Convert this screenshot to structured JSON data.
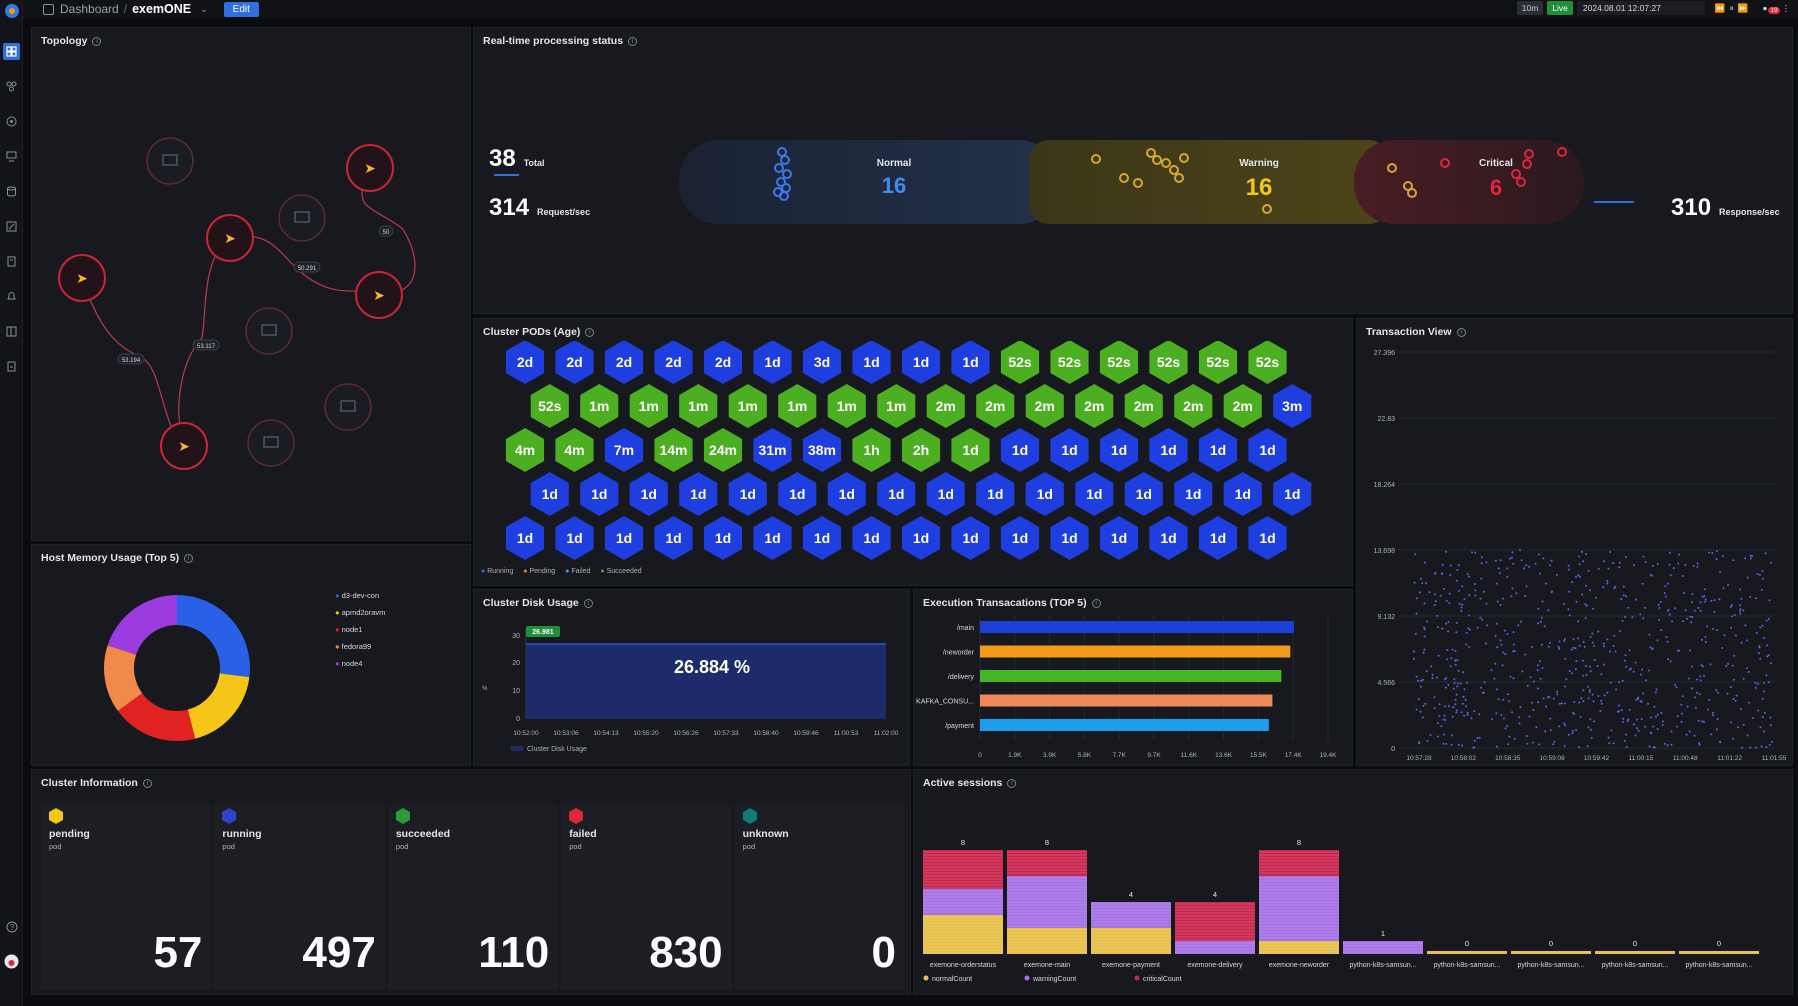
{
  "topbar": {
    "breadcrumb_root": "Dashboard",
    "separator": "/",
    "dashboard_name": "exemONE",
    "edit_label": "Edit",
    "interval": "10m",
    "live_label": "Live",
    "datetime": "2024.08.01 12:07:27",
    "notification_count": "19"
  },
  "topology": {
    "title": "Topology",
    "edge_labels": [
      "50",
      "50.291",
      "53.117",
      "53.194"
    ]
  },
  "realtime": {
    "title": "Real-time processing status",
    "total_value": "38",
    "total_label": "Total",
    "request_value": "314",
    "request_label": "Request/sec",
    "normal_label": "Normal",
    "normal_value": "16",
    "warning_label": "Warning",
    "warning_value": "16",
    "critical_label": "Critical",
    "critical_value": "6",
    "response_value": "310",
    "response_label": "Response/sec"
  },
  "pods": {
    "title": "Cluster PODs (Age)",
    "legend": [
      "Running",
      "Pending",
      "Failed",
      "Succeeded"
    ],
    "colors": {
      "running": "#1f3ee0",
      "succeeded": "#4caf22"
    },
    "rows": [
      [
        [
          "2d",
          "r"
        ],
        [
          "2d",
          "r"
        ],
        [
          "2d",
          "r"
        ],
        [
          "2d",
          "r"
        ],
        [
          "2d",
          "r"
        ],
        [
          "1d",
          "r"
        ],
        [
          "3d",
          "r"
        ],
        [
          "1d",
          "r"
        ],
        [
          "1d",
          "r"
        ],
        [
          "1d",
          "r"
        ],
        [
          "52s",
          "g"
        ],
        [
          "52s",
          "g"
        ],
        [
          "52s",
          "g"
        ],
        [
          "52s",
          "g"
        ],
        [
          "52s",
          "g"
        ],
        [
          "52s",
          "g"
        ]
      ],
      [
        [
          "52s",
          "g"
        ],
        [
          "1m",
          "g"
        ],
        [
          "1m",
          "g"
        ],
        [
          "1m",
          "g"
        ],
        [
          "1m",
          "g"
        ],
        [
          "1m",
          "g"
        ],
        [
          "1m",
          "g"
        ],
        [
          "1m",
          "g"
        ],
        [
          "2m",
          "g"
        ],
        [
          "2m",
          "g"
        ],
        [
          "2m",
          "g"
        ],
        [
          "2m",
          "g"
        ],
        [
          "2m",
          "g"
        ],
        [
          "2m",
          "g"
        ],
        [
          "2m",
          "g"
        ],
        [
          "3m",
          "r"
        ]
      ],
      [
        [
          "4m",
          "g"
        ],
        [
          "4m",
          "g"
        ],
        [
          "7m",
          "r"
        ],
        [
          "14m",
          "g"
        ],
        [
          "24m",
          "g"
        ],
        [
          "31m",
          "r"
        ],
        [
          "38m",
          "r"
        ],
        [
          "1h",
          "g"
        ],
        [
          "2h",
          "g"
        ],
        [
          "1d",
          "g"
        ],
        [
          "1d",
          "r"
        ],
        [
          "1d",
          "r"
        ],
        [
          "1d",
          "r"
        ],
        [
          "1d",
          "r"
        ],
        [
          "1d",
          "r"
        ],
        [
          "1d",
          "r"
        ]
      ],
      [
        [
          "1d",
          "r"
        ],
        [
          "1d",
          "r"
        ],
        [
          "1d",
          "r"
        ],
        [
          "1d",
          "r"
        ],
        [
          "1d",
          "r"
        ],
        [
          "1d",
          "r"
        ],
        [
          "1d",
          "r"
        ],
        [
          "1d",
          "r"
        ],
        [
          "1d",
          "r"
        ],
        [
          "1d",
          "r"
        ],
        [
          "1d",
          "r"
        ],
        [
          "1d",
          "r"
        ],
        [
          "1d",
          "r"
        ],
        [
          "1d",
          "r"
        ],
        [
          "1d",
          "r"
        ],
        [
          "1d",
          "r"
        ]
      ],
      [
        [
          "1d",
          "r"
        ],
        [
          "1d",
          "r"
        ],
        [
          "1d",
          "r"
        ],
        [
          "1d",
          "r"
        ],
        [
          "1d",
          "r"
        ],
        [
          "1d",
          "r"
        ],
        [
          "1d",
          "r"
        ],
        [
          "1d",
          "r"
        ],
        [
          "1d",
          "r"
        ],
        [
          "1d",
          "r"
        ],
        [
          "1d",
          "r"
        ],
        [
          "1d",
          "r"
        ],
        [
          "1d",
          "r"
        ],
        [
          "1d",
          "r"
        ],
        [
          "1d",
          "r"
        ],
        [
          "1d",
          "r"
        ]
      ]
    ]
  },
  "txview": {
    "title": "Transaction View",
    "y_ticks": [
      "27.396",
      "22.83",
      "18.264",
      "13.698",
      "9.132",
      "4.566",
      "0"
    ],
    "x_ticks": [
      "10:57:28",
      "10:58:02",
      "10:58:35",
      "10:59:08",
      "10:59:42",
      "11:00:15",
      "11:00:48",
      "11:01:22",
      "11:01:55"
    ]
  },
  "hostmem": {
    "title": "Host Memory Usage (Top 5)",
    "legend": [
      {
        "name": "d3-dev-con",
        "color": "#2a5fe8"
      },
      {
        "name": "apmd2oravm",
        "color": "#f5c518"
      },
      {
        "name": "node1",
        "color": "#e02222"
      },
      {
        "name": "fedora99",
        "color": "#f0894a"
      },
      {
        "name": "node4",
        "color": "#9b3be0"
      }
    ]
  },
  "disk": {
    "title": "Cluster Disk Usage",
    "badge": "26.981",
    "center_value": "26.884 %",
    "y_ticks": [
      "30",
      "20",
      "10",
      "0"
    ],
    "y_unit": "%",
    "x_ticks": [
      "10:52:00",
      "10:53:06",
      "10:54:13",
      "10:55:20",
      "10:56:26",
      "10:57:33",
      "10:58:40",
      "10:59:46",
      "11:00:53",
      "11:02:00"
    ],
    "legend": "Cluster Disk Usage"
  },
  "exec": {
    "title": "Execution Transacations (TOP 5)",
    "x_ticks": [
      "0",
      "1.9K",
      "3.9K",
      "5.8K",
      "7.7K",
      "9.7K",
      "11.6K",
      "13.6K",
      "15.5K",
      "17.4K",
      "19.4K"
    ]
  },
  "cluster_info": {
    "title": "Cluster Information",
    "cards": [
      {
        "status": "pending",
        "sub": "pod",
        "value": "57",
        "color": "#f5c518"
      },
      {
        "status": "running",
        "sub": "pod",
        "value": "497",
        "color": "#2b45c8"
      },
      {
        "status": "succeeded",
        "sub": "pod",
        "value": "110",
        "color": "#2e9a3a"
      },
      {
        "status": "failed",
        "sub": "pod",
        "value": "830",
        "color": "#e0263a"
      },
      {
        "status": "unknown",
        "sub": "pod",
        "value": "0",
        "color": "#0f7c7a"
      }
    ]
  },
  "sessions": {
    "title": "Active sessions",
    "legend": [
      "normalCount",
      "warningCount",
      "criticalCount"
    ]
  },
  "chart_data": [
    {
      "type": "bar",
      "title": "Execution Transacations (TOP 5)",
      "categories": [
        "/main",
        "/neworder",
        "/delivery",
        "KAFKA_CONSU...",
        "/payment"
      ],
      "values": [
        17500,
        17300,
        16800,
        16300,
        16100
      ],
      "colors": [
        "#1d3fd9",
        "#f59a16",
        "#45b52a",
        "#f0895a",
        "#1f9ef0"
      ],
      "xlim": [
        0,
        19400
      ]
    },
    {
      "type": "area",
      "title": "Cluster Disk Usage",
      "x": [
        "10:52:00",
        "11:02:00"
      ],
      "values": [
        26.981,
        26.884
      ],
      "ylim": [
        0,
        30
      ],
      "ylabel": "%"
    },
    {
      "type": "pie",
      "title": "Host Memory Usage (Top 5)",
      "categories": [
        "d3-dev-con",
        "apmd2oravm",
        "node1",
        "fedora99",
        "node4"
      ],
      "values": [
        27,
        19,
        19,
        15,
        20
      ]
    },
    {
      "type": "bar",
      "title": "Active sessions",
      "categories": [
        "exemone-orderstatus",
        "exemone-main",
        "exemone-payment",
        "exemone-delivery",
        "exemone-neworder",
        "python-k8s-samsun...",
        "python-k8s-samsun...",
        "python-k8s-samsun...",
        "python-k8s-samsun...",
        "python-k8s-samsun..."
      ],
      "totals": [
        8,
        8,
        4,
        4,
        8,
        1,
        0,
        0,
        0,
        0
      ],
      "series": [
        {
          "name": "normalCount",
          "values": [
            3,
            2,
            2,
            0,
            1,
            0,
            0,
            0,
            0,
            0
          ],
          "color": "#e8c04a"
        },
        {
          "name": "warningCount",
          "values": [
            2,
            4,
            2,
            1,
            5,
            1,
            0,
            0,
            0,
            0
          ],
          "color": "#a572e6"
        },
        {
          "name": "criticalCount",
          "values": [
            3,
            2,
            0,
            3,
            2,
            0,
            0,
            0,
            0,
            0
          ],
          "color": "#c8264e"
        }
      ]
    }
  ]
}
